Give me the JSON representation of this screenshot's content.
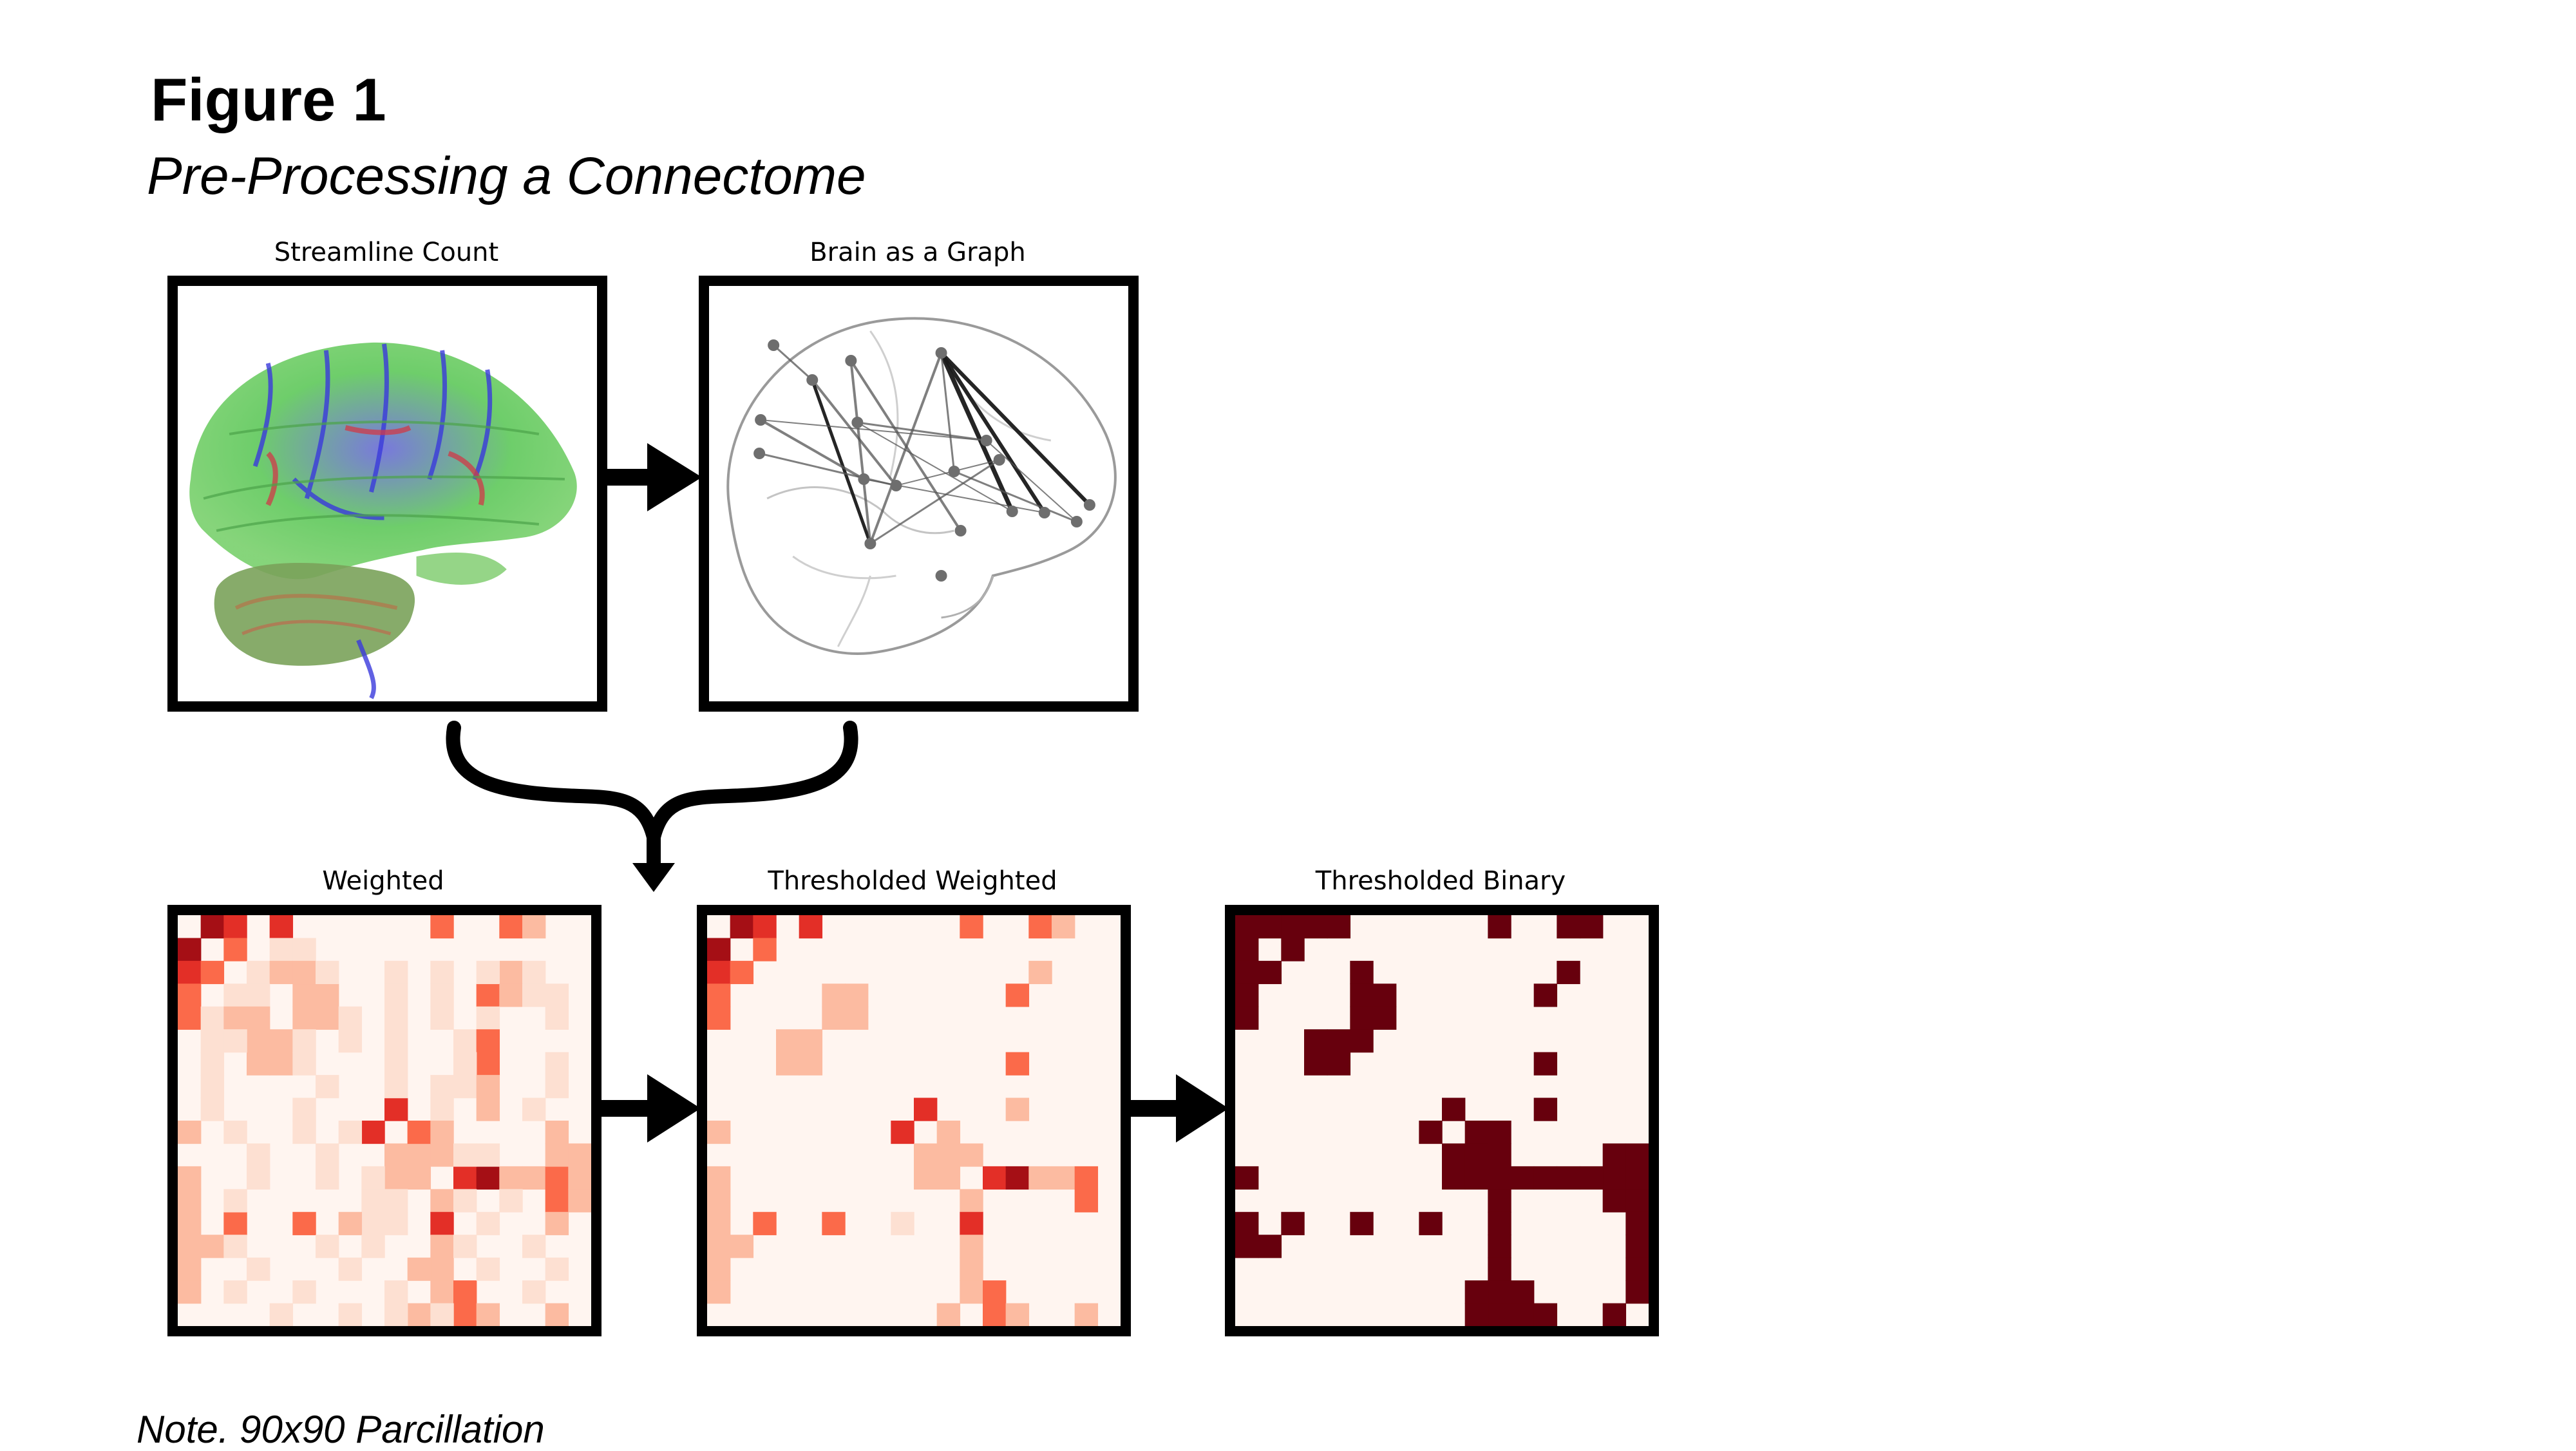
{
  "figure": {
    "label": "Figure 1",
    "title": "Pre-Processing a Connectome",
    "note": "Note. 90x90 Parcillation"
  },
  "panels": {
    "streamline": {
      "title": "Streamline Count"
    },
    "graph": {
      "title": "Brain as a Graph"
    },
    "weighted": {
      "title": "Weighted"
    },
    "thresholded_weighted": {
      "title": "Thresholded Weighted"
    },
    "thresholded_binary": {
      "title": "Thresholded Binary"
    }
  },
  "colors": {
    "matrix_background": "#fff5f0",
    "weak": "#fde0d2",
    "light": "#fcbba1",
    "medium": "#fb6a4a",
    "strong": "#e32f27",
    "very_strong": "#a50f15",
    "binary_on": "#67000d",
    "frame": "#000000"
  }
}
